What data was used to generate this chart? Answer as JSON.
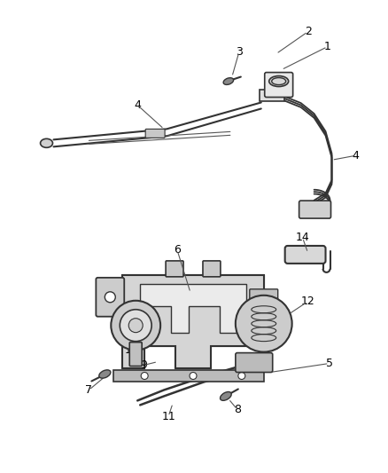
{
  "background_color": "#ffffff",
  "line_color": "#333333",
  "label_color": "#000000",
  "figsize": [
    4.38,
    5.33
  ],
  "dpi": 100
}
